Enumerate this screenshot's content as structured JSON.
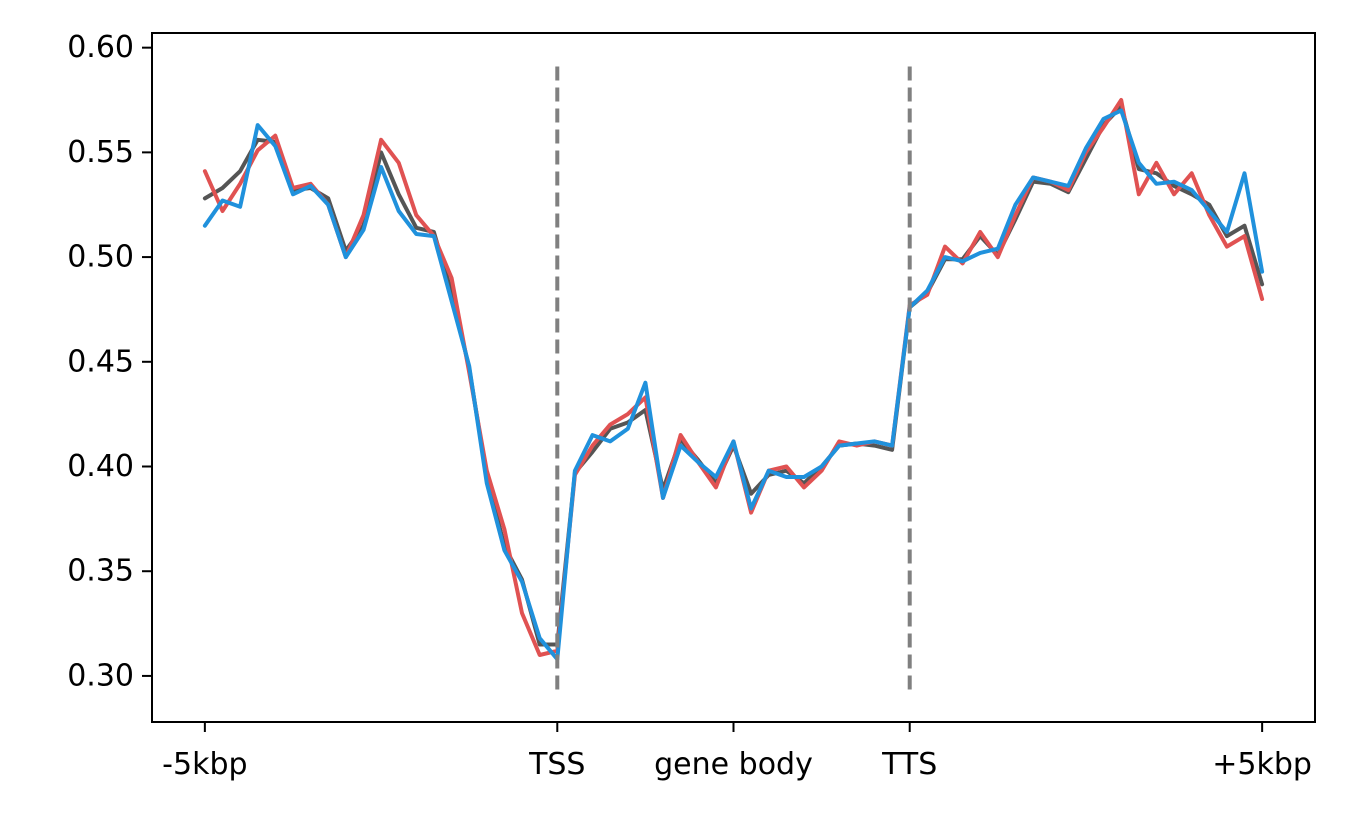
{
  "chart_data": {
    "type": "line",
    "title": "",
    "xlabel": "",
    "ylabel": "",
    "ylim": [
      0.278,
      0.607
    ],
    "xlim": [
      -0.3,
      6.3
    ],
    "grid": false,
    "legend": "none",
    "yticks": [
      {
        "value": 0.3,
        "label": "0.30"
      },
      {
        "value": 0.35,
        "label": "0.35"
      },
      {
        "value": 0.4,
        "label": "0.40"
      },
      {
        "value": 0.45,
        "label": "0.45"
      },
      {
        "value": 0.5,
        "label": "0.50"
      },
      {
        "value": 0.55,
        "label": "0.55"
      },
      {
        "value": 0.6,
        "label": "0.60"
      }
    ],
    "xticks": [
      {
        "value": 0,
        "label": "-5kbp"
      },
      {
        "value": 2,
        "label": "TSS"
      },
      {
        "value": 3,
        "label": "gene body"
      },
      {
        "value": 4,
        "label": "TTS"
      },
      {
        "value": 6,
        "label": "+5kbp"
      }
    ],
    "vlines": [
      {
        "x": 2,
        "ymin": 0.293,
        "ymax": 0.591,
        "color": "#808080",
        "style": "dashed"
      },
      {
        "x": 4,
        "ymin": 0.293,
        "ymax": 0.591,
        "color": "#808080",
        "style": "dashed"
      }
    ],
    "x": [
      0,
      0.1,
      0.2,
      0.3,
      0.4,
      0.5,
      0.6,
      0.7,
      0.8,
      0.9,
      1,
      1.1,
      1.2,
      1.3,
      1.4,
      1.5,
      1.6,
      1.7,
      1.8,
      1.9,
      2,
      2.1,
      2.2,
      2.3,
      2.4,
      2.5,
      2.6,
      2.7,
      2.8,
      2.9,
      3,
      3.1,
      3.2,
      3.3,
      3.4,
      3.5,
      3.6,
      3.7,
      3.8,
      3.9,
      4,
      4.1,
      4.2,
      4.3,
      4.4,
      4.5,
      4.6,
      4.7,
      4.8,
      4.9,
      5,
      5.1,
      5.2,
      5.3,
      5.4,
      5.5,
      5.6,
      5.7,
      5.8,
      5.9,
      6
    ],
    "series": [
      {
        "color": "#555555",
        "values": [
          0.528,
          0.533,
          0.541,
          0.556,
          0.555,
          0.532,
          0.533,
          0.528,
          0.503,
          0.515,
          0.55,
          0.53,
          0.514,
          0.512,
          0.483,
          0.447,
          0.395,
          0.362,
          0.346,
          0.315,
          0.315,
          0.397,
          0.407,
          0.418,
          0.421,
          0.427,
          0.389,
          0.413,
          0.403,
          0.392,
          0.41,
          0.387,
          0.396,
          0.398,
          0.392,
          0.4,
          0.41,
          0.411,
          0.41,
          0.408,
          0.476,
          0.483,
          0.499,
          0.499,
          0.51,
          0.501,
          0.518,
          0.536,
          0.535,
          0.531,
          0.547,
          0.563,
          0.572,
          0.542,
          0.54,
          0.534,
          0.53,
          0.525,
          0.51,
          0.515,
          0.487
        ]
      },
      {
        "color": "#e05252",
        "values": [
          0.541,
          0.522,
          0.535,
          0.551,
          0.558,
          0.533,
          0.535,
          0.525,
          0.5,
          0.52,
          0.556,
          0.545,
          0.52,
          0.51,
          0.49,
          0.445,
          0.398,
          0.37,
          0.33,
          0.31,
          0.312,
          0.396,
          0.41,
          0.42,
          0.425,
          0.433,
          0.385,
          0.415,
          0.402,
          0.39,
          0.412,
          0.378,
          0.398,
          0.4,
          0.39,
          0.398,
          0.412,
          0.41,
          0.412,
          0.41,
          0.477,
          0.482,
          0.505,
          0.497,
          0.512,
          0.5,
          0.52,
          0.538,
          0.536,
          0.532,
          0.55,
          0.562,
          0.575,
          0.53,
          0.545,
          0.53,
          0.54,
          0.52,
          0.505,
          0.51,
          0.48
        ]
      },
      {
        "color": "#2091dc",
        "values": [
          0.515,
          0.527,
          0.524,
          0.563,
          0.553,
          0.53,
          0.534,
          0.525,
          0.5,
          0.513,
          0.543,
          0.522,
          0.511,
          0.51,
          0.479,
          0.448,
          0.392,
          0.36,
          0.345,
          0.318,
          0.308,
          0.398,
          0.415,
          0.412,
          0.418,
          0.44,
          0.385,
          0.41,
          0.402,
          0.395,
          0.412,
          0.38,
          0.398,
          0.395,
          0.395,
          0.4,
          0.41,
          0.411,
          0.412,
          0.41,
          0.476,
          0.484,
          0.5,
          0.498,
          0.502,
          0.504,
          0.525,
          0.538,
          0.536,
          0.534,
          0.552,
          0.566,
          0.57,
          0.545,
          0.535,
          0.536,
          0.532,
          0.522,
          0.512,
          0.54,
          0.493
        ]
      }
    ]
  }
}
